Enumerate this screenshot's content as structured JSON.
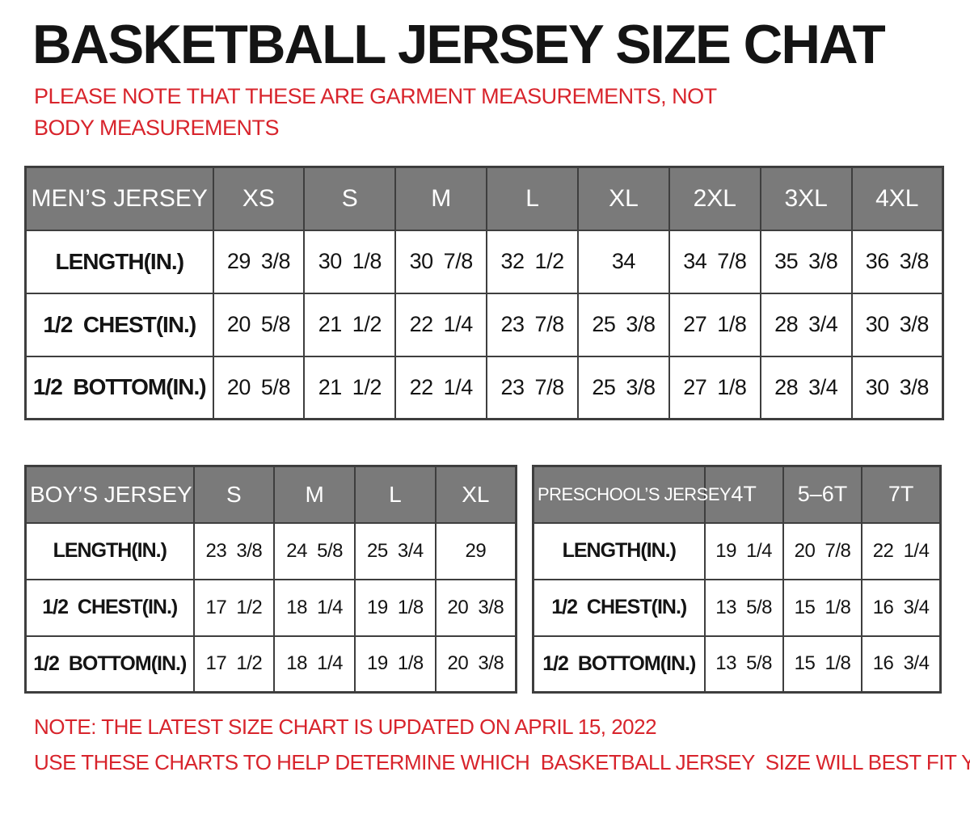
{
  "page": {
    "title": "BASKETBALL JERSEY SIZE CHAT",
    "top_note": "PLEASE NOTE THAT THESE ARE GARMENT MEASUREMENTS, NOT BODY MEASUREMENTS",
    "bottom_note_1": "NOTE: THE LATEST SIZE CHART IS UPDATED ON APRIL 15, 2022",
    "bottom_note_2": "USE THESE CHARTS TO HELP DETERMINE WHICH  BASKETBALL JERSEY  SIZE WILL BEST FIT YOU."
  },
  "colors": {
    "header_bg": "#7a7a7a",
    "header_text": "#ffffff",
    "table_border": "#3e3e3e",
    "note_red": "#d8242c",
    "title_black": "#141414"
  },
  "tables": [
    {
      "id": "mens",
      "title": "MEN’S JERSEY",
      "header": [
        "MEN’S JERSEY",
        "XS",
        "S",
        "M",
        "L",
        "XL",
        "2XL",
        "3XL",
        "4XL"
      ],
      "rows": [
        [
          "LENGTH(IN.)",
          "29 3/8",
          "30 1/8",
          "30 7/8",
          "32 1/2",
          "34",
          "34 7/8",
          "35 3/8",
          "36 3/8"
        ],
        [
          "1/2  CHEST(IN.)",
          "20 5/8",
          "21 1/2",
          "22 1/4",
          "23 7/8",
          "25 3/8",
          "27 1/8",
          "28 3/4",
          "30 3/8"
        ],
        [
          "1/2  BOTTOM(IN.)",
          "20 5/8",
          "21 1/2",
          "22 1/4",
          "23 7/8",
          "25 3/8",
          "27 1/8",
          "28 3/4",
          "30 3/8"
        ]
      ]
    },
    {
      "id": "boys",
      "title": "BOY’S JERSEY",
      "header": [
        "BOY’S JERSEY",
        "S",
        "M",
        "L",
        "XL"
      ],
      "rows": [
        [
          "LENGTH(IN.)",
          "23 3/8",
          "24 5/8",
          "25 3/4",
          "29"
        ],
        [
          "1/2  CHEST(IN.)",
          "17 1/2",
          "18 1/4",
          "19 1/8",
          "20 3/8"
        ],
        [
          "1/2  BOTTOM(IN.)",
          "17 1/2",
          "18 1/4",
          "19 1/8",
          "20 3/8"
        ]
      ]
    },
    {
      "id": "preschool",
      "title": "PRESCHOOL’S JERSEY",
      "header": [
        "PRESCHOOL’S JERSEY",
        "4T",
        "5–6T",
        "7T"
      ],
      "rows": [
        [
          "LENGTH(IN.)",
          "19 1/4",
          "20 7/8",
          "22 1/4"
        ],
        [
          "1/2  CHEST(IN.)",
          "13 5/8",
          "15 1/8",
          "16 3/4"
        ],
        [
          "1/2  BOTTOM(IN.)",
          "13 5/8",
          "15 1/8",
          "16 3/4"
        ]
      ]
    }
  ]
}
